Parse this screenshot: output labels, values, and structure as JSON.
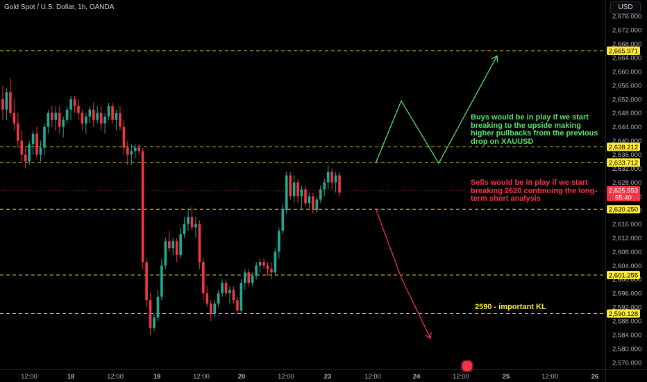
{
  "header": {
    "symbol_title": "Gold Spot / U.S. Dollar, 1h, OANDA",
    "currency_button": "USD"
  },
  "colors": {
    "background": "#000000",
    "up": "#22ab94",
    "down": "#f23645",
    "level_line": "#e6d21a",
    "level_label_bg": "#ffeb3b",
    "axis_text": "#b2b5be",
    "green_note": "#59e36d",
    "red_note": "#f23645"
  },
  "annotations": {
    "buy_note": "Buys would be in play if we start breaking to the upside making higher pullbacks from the previous drop on XAUUSD",
    "sell_note": "Sells would be in play if we start breaking 2620 continuing the long-term short analysis",
    "kl_note": "2590 - important KL"
  },
  "chart_data": {
    "type": "candlestick",
    "title": "Gold Spot / U.S. Dollar, 1h, OANDA",
    "y_axis": {
      "range": [
        2573.5,
        2678.5
      ],
      "ticks": [
        "2,676.000",
        "2,672.000",
        "2,668.000",
        "2,664.000",
        "2,660.000",
        "2,656.000",
        "2,652.000",
        "2,648.000",
        "2,644.000",
        "2,640.000",
        "2,636.000",
        "2,632.000",
        "2,628.000",
        "2,624.000",
        "2,620.000",
        "2,616.000",
        "2,612.000",
        "2,608.000",
        "2,604.000",
        "2,600.000",
        "2,596.000",
        "2,592.000",
        "2,588.000",
        "2,584.000",
        "2,580.000",
        "2,576.000"
      ]
    },
    "x_axis": {
      "ticks": [
        "12:00",
        "18",
        "12:00",
        "19",
        "12:00",
        "20",
        "12:00",
        "23",
        "12:00",
        "24",
        "12:00",
        "25",
        "12:00",
        "26"
      ]
    },
    "levels": [
      {
        "price": 2665.971,
        "label": "2,665.971"
      },
      {
        "price": 2638.212,
        "label": "2,638.212"
      },
      {
        "price": 2633.712,
        "label": "2,633.712"
      },
      {
        "price": 2620.25,
        "label": "2,620.250"
      },
      {
        "price": 2601.255,
        "label": "2,601.255"
      },
      {
        "price": 2590.128,
        "label": "2,590.128"
      }
    ],
    "current_price": {
      "price": 2625.553,
      "label": "2,625.553",
      "countdown": "55:40"
    },
    "ohlc": [
      [
        2652,
        2656,
        2646,
        2649
      ],
      [
        2649,
        2655,
        2646,
        2654
      ],
      [
        2654,
        2658,
        2647,
        2648
      ],
      [
        2648,
        2652,
        2643,
        2645
      ],
      [
        2645,
        2648,
        2638,
        2640
      ],
      [
        2640,
        2643,
        2634,
        2636
      ],
      [
        2636,
        2638,
        2632,
        2634
      ],
      [
        2634,
        2640,
        2633,
        2639
      ],
      [
        2639,
        2643,
        2636,
        2642
      ],
      [
        2642,
        2644,
        2635,
        2636
      ],
      [
        2636,
        2640,
        2634,
        2638
      ],
      [
        2638,
        2645,
        2636,
        2644
      ],
      [
        2644,
        2649,
        2642,
        2648
      ],
      [
        2648,
        2650,
        2644,
        2646
      ],
      [
        2646,
        2650,
        2643,
        2648
      ],
      [
        2648,
        2650,
        2642,
        2644
      ],
      [
        2644,
        2647,
        2641,
        2646
      ],
      [
        2646,
        2650,
        2645,
        2649
      ],
      [
        2649,
        2653,
        2646,
        2652
      ],
      [
        2652,
        2653,
        2648,
        2650
      ],
      [
        2650,
        2652,
        2646,
        2648
      ],
      [
        2648,
        2649,
        2643,
        2645
      ],
      [
        2645,
        2648,
        2642,
        2647
      ],
      [
        2647,
        2650,
        2645,
        2649
      ],
      [
        2649,
        2651,
        2644,
        2646
      ],
      [
        2646,
        2650,
        2645,
        2648
      ],
      [
        2648,
        2650,
        2643,
        2645
      ],
      [
        2645,
        2648,
        2642,
        2647
      ],
      [
        2647,
        2651,
        2646,
        2650
      ],
      [
        2650,
        2651,
        2645,
        2646
      ],
      [
        2646,
        2649,
        2643,
        2648
      ],
      [
        2648,
        2650,
        2643,
        2644
      ],
      [
        2644,
        2646,
        2636,
        2638
      ],
      [
        2638,
        2640,
        2633,
        2636
      ],
      [
        2636,
        2639,
        2633,
        2637
      ],
      [
        2637,
        2639,
        2635,
        2638
      ],
      [
        2638,
        2639,
        2636,
        2637
      ],
      [
        2637,
        2638,
        2603,
        2605
      ],
      [
        2605,
        2606,
        2592,
        2594
      ],
      [
        2594,
        2596,
        2584,
        2586
      ],
      [
        2586,
        2590,
        2585,
        2589
      ],
      [
        2589,
        2597,
        2588,
        2595
      ],
      [
        2595,
        2606,
        2594,
        2604
      ],
      [
        2604,
        2612,
        2603,
        2611
      ],
      [
        2611,
        2614,
        2608,
        2609
      ],
      [
        2609,
        2612,
        2607,
        2611
      ],
      [
        2611,
        2612,
        2605,
        2607
      ],
      [
        2607,
        2615,
        2606,
        2613
      ],
      [
        2613,
        2618,
        2612,
        2616
      ],
      [
        2616,
        2620,
        2614,
        2618
      ],
      [
        2618,
        2621,
        2614,
        2615
      ],
      [
        2615,
        2618,
        2612,
        2616
      ],
      [
        2616,
        2617,
        2603,
        2605
      ],
      [
        2605,
        2606,
        2594,
        2596
      ],
      [
        2596,
        2598,
        2592,
        2593
      ],
      [
        2593,
        2594,
        2588,
        2590
      ],
      [
        2590,
        2594,
        2589,
        2593
      ],
      [
        2593,
        2597,
        2592,
        2596
      ],
      [
        2596,
        2600,
        2595,
        2599
      ],
      [
        2599,
        2600,
        2595,
        2596
      ],
      [
        2596,
        2598,
        2593,
        2597
      ],
      [
        2597,
        2598,
        2593,
        2594
      ],
      [
        2594,
        2595,
        2590,
        2591
      ],
      [
        2591,
        2600,
        2590,
        2599
      ],
      [
        2599,
        2603,
        2597,
        2602
      ],
      [
        2602,
        2603,
        2598,
        2599
      ],
      [
        2599,
        2602,
        2598,
        2601
      ],
      [
        2601,
        2605,
        2600,
        2604
      ],
      [
        2604,
        2606,
        2602,
        2605
      ],
      [
        2605,
        2606,
        2603,
        2604
      ],
      [
        2604,
        2605,
        2601,
        2603
      ],
      [
        2603,
        2605,
        2600,
        2602
      ],
      [
        2602,
        2609,
        2601,
        2608
      ],
      [
        2608,
        2615,
        2606,
        2614
      ],
      [
        2614,
        2622,
        2613,
        2620
      ],
      [
        2620,
        2631,
        2619,
        2630
      ],
      [
        2630,
        2631,
        2623,
        2624
      ],
      [
        2624,
        2630,
        2622,
        2628
      ],
      [
        2628,
        2629,
        2622,
        2624
      ],
      [
        2624,
        2627,
        2620,
        2626
      ],
      [
        2626,
        2627,
        2621,
        2622
      ],
      [
        2622,
        2625,
        2620,
        2624
      ],
      [
        2624,
        2625,
        2619,
        2620
      ],
      [
        2620,
        2624,
        2619,
        2623
      ],
      [
        2623,
        2627,
        2622,
        2626
      ],
      [
        2626,
        2629,
        2624,
        2628
      ],
      [
        2628,
        2633,
        2626,
        2631
      ],
      [
        2631,
        2632,
        2626,
        2628
      ],
      [
        2628,
        2631,
        2625,
        2630
      ],
      [
        2630,
        2631,
        2624,
        2625
      ]
    ],
    "projections": [
      {
        "direction": "up",
        "path_prices": [
          2633.5,
          2651.5,
          2633.5,
          2664.5
        ]
      },
      {
        "direction": "down",
        "path_prices": [
          2620.5,
          2600.5,
          2583
        ]
      }
    ]
  }
}
